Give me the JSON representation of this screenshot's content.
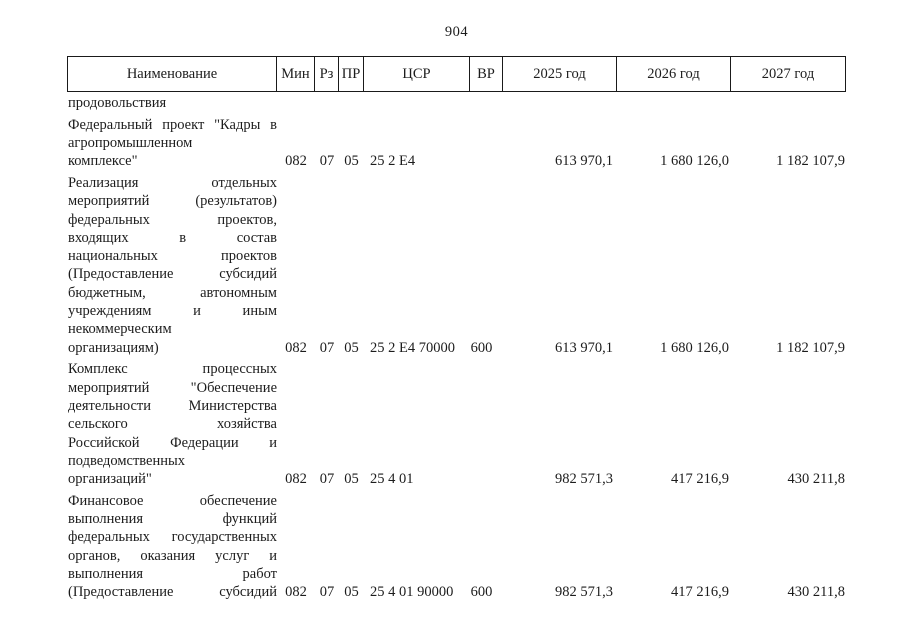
{
  "page": {
    "number": "904"
  },
  "colors": {
    "background": "#ffffff",
    "text": "#1c1c1c",
    "border": "#1a1a1a"
  },
  "table": {
    "columns": [
      {
        "key": "name",
        "label": "Наименование"
      },
      {
        "key": "min",
        "label": "Мин"
      },
      {
        "key": "rz",
        "label": "Рз"
      },
      {
        "key": "pr",
        "label": "ПР"
      },
      {
        "key": "csr",
        "label": "ЦСР"
      },
      {
        "key": "vr",
        "label": "ВР"
      },
      {
        "key": "y2025",
        "label": "2025 год"
      },
      {
        "key": "y2026",
        "label": "2026 год"
      },
      {
        "key": "y2027",
        "label": "2027 год"
      }
    ],
    "carryover_text": "продовольствия",
    "rows": [
      {
        "name_lines": [
          "Федеральный проект \"Кадры в",
          "агропромышленном",
          "комплексе\""
        ],
        "justify_last_line": false,
        "min": "082",
        "rz": "07",
        "pr": "05",
        "csr": "25 2 Е4",
        "vr": "",
        "y2025": "613 970,1",
        "y2026": "1 680 126,0",
        "y2027": "1 182 107,9"
      },
      {
        "name_lines": [
          "Реализация отдельных",
          "мероприятий (результатов)",
          "федеральных проектов,",
          "входящих в состав",
          "национальных проектов",
          "(Предоставление субсидий",
          "бюджетным, автономным",
          "учреждениям и иным",
          "некоммерческим",
          "организациям)"
        ],
        "justify_last_line": false,
        "min": "082",
        "rz": "07",
        "pr": "05",
        "csr": "25 2 Е4 70000",
        "vr": "600",
        "y2025": "613 970,1",
        "y2026": "1 680 126,0",
        "y2027": "1 182 107,9"
      },
      {
        "name_lines": [
          "Комплекс процессных",
          "мероприятий \"Обеспечение",
          "деятельности Министерства",
          "сельского хозяйства",
          "Российской Федерации и",
          "подведомственных",
          "организаций\""
        ],
        "justify_last_line": false,
        "min": "082",
        "rz": "07",
        "pr": "05",
        "csr": "25 4 01",
        "vr": "",
        "y2025": "982 571,3",
        "y2026": "417 216,9",
        "y2027": "430 211,8"
      },
      {
        "name_lines": [
          "Финансовое обеспечение",
          "выполнения функций",
          "федеральных государственных",
          "органов, оказания услуг и",
          "выполнения работ",
          "(Предоставление субсидий"
        ],
        "justify_last_line": true,
        "min": "082",
        "rz": "07",
        "pr": "05",
        "csr": "25 4 01 90000",
        "vr": "600",
        "y2025": "982 571,3",
        "y2026": "417 216,9",
        "y2027": "430 211,8"
      }
    ]
  }
}
